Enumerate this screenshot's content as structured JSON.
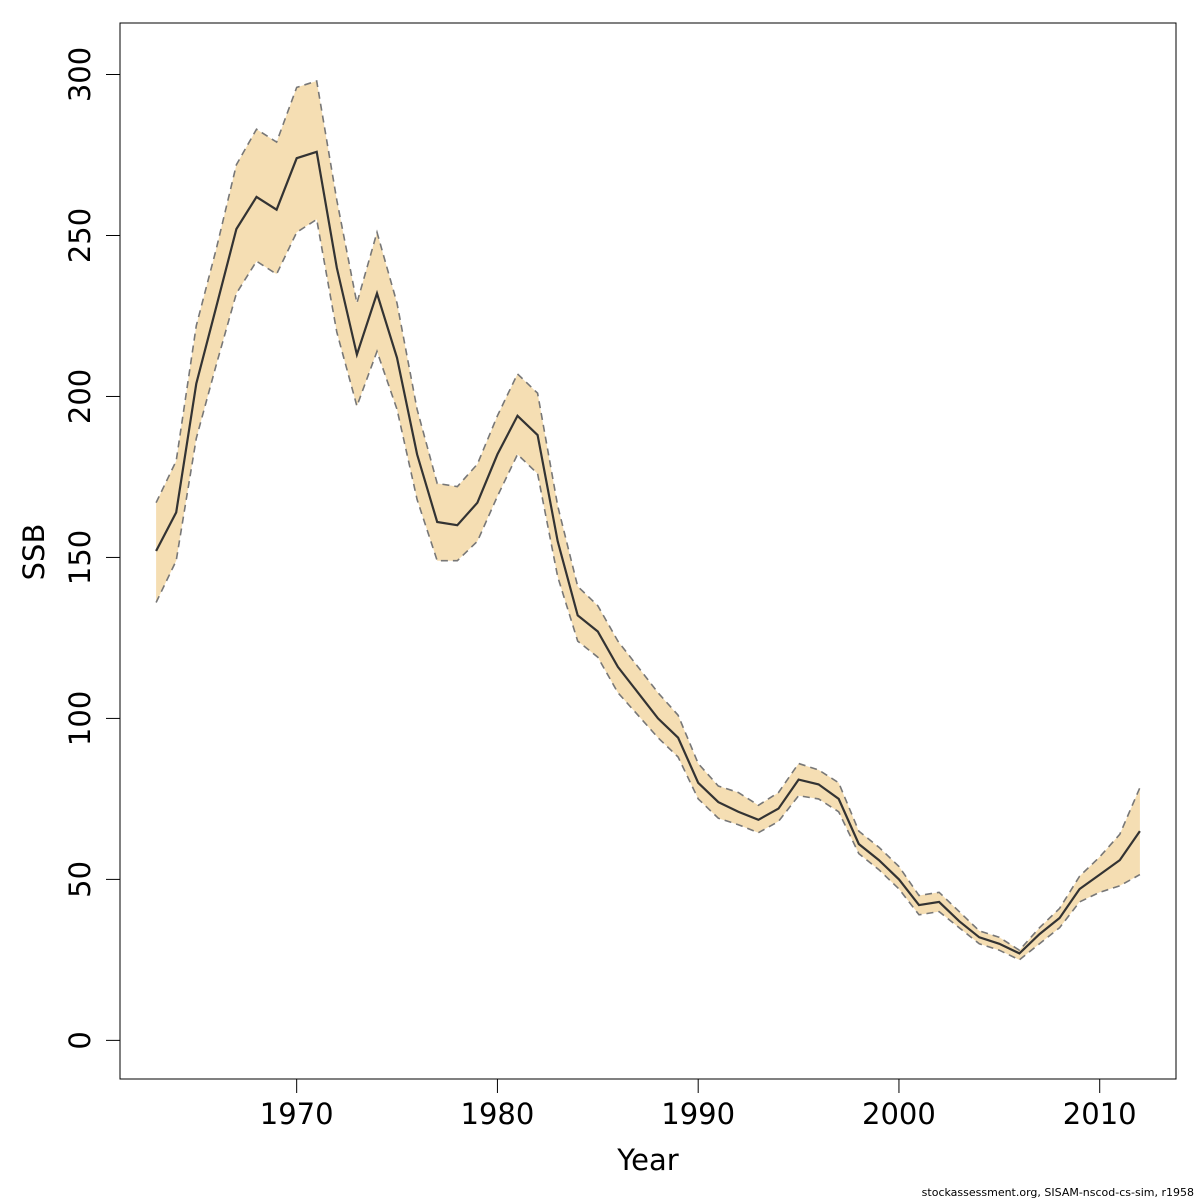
{
  "chart_data": {
    "type": "line",
    "xlabel": "Year",
    "ylabel": "SSB",
    "xlim": [
      1961.2,
      2013.8
    ],
    "ylim": [
      -12,
      316
    ],
    "x_ticks": [
      1970,
      1980,
      1990,
      2000,
      2010
    ],
    "y_ticks": [
      0,
      50,
      100,
      150,
      200,
      250,
      300
    ],
    "grid": false,
    "legend": "none",
    "colors": {
      "band_fill": "#f5deb3",
      "estimate_line": "#333333",
      "bound_line": "#777777",
      "frame": "#000000"
    },
    "x": [
      1963,
      1964,
      1965,
      1966,
      1967,
      1968,
      1969,
      1970,
      1971,
      1972,
      1973,
      1974,
      1975,
      1976,
      1977,
      1978,
      1979,
      1980,
      1981,
      1982,
      1983,
      1984,
      1985,
      1986,
      1987,
      1988,
      1989,
      1990,
      1991,
      1992,
      1993,
      1994,
      1995,
      1996,
      1997,
      1998,
      1999,
      2000,
      2001,
      2002,
      2003,
      2004,
      2005,
      2006,
      2007,
      2008,
      2009,
      2010,
      2011,
      2012
    ],
    "series": [
      {
        "role": "estimate",
        "values": [
          152,
          164,
          204,
          228,
          252,
          262,
          258,
          274,
          276,
          240,
          213,
          232,
          212,
          182,
          161,
          160,
          167,
          182,
          194,
          188,
          155,
          132,
          127,
          116,
          108,
          100,
          94,
          80,
          74,
          71,
          68.5,
          72,
          81,
          79.5,
          75,
          61,
          56,
          50,
          42,
          43,
          37,
          32,
          30,
          27,
          33,
          38,
          47,
          51.5,
          56,
          65
        ]
      },
      {
        "role": "upper",
        "values": [
          167,
          180,
          222,
          246,
          272,
          283,
          279,
          296,
          298,
          261,
          229,
          251,
          229,
          196,
          173,
          172,
          179,
          194,
          207,
          201,
          166,
          141,
          135,
          124,
          116,
          108,
          101,
          86,
          79,
          77,
          73,
          77,
          86,
          84,
          80,
          65,
          60,
          54,
          45,
          46,
          40,
          34,
          32,
          28,
          35,
          41,
          51,
          57,
          64,
          78.5
        ]
      },
      {
        "role": "lower",
        "values": [
          136,
          149,
          187,
          210,
          232,
          242,
          238,
          251,
          255,
          220,
          197,
          214,
          196,
          168,
          149,
          149,
          155,
          169,
          182,
          176,
          144,
          124,
          119,
          108,
          101,
          94,
          88,
          75,
          69,
          67,
          64.5,
          68,
          76,
          75,
          71,
          58,
          53,
          47,
          39,
          40,
          35,
          30,
          28,
          25,
          30,
          35,
          43,
          46,
          48,
          51.5
        ]
      }
    ],
    "footer_credit": "stockassessment.org, SISAM-nscod-cs-sim, r1958"
  }
}
